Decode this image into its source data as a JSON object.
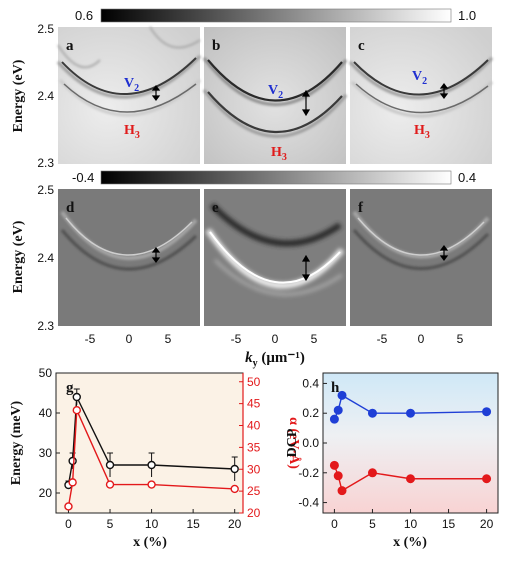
{
  "colorbars": [
    {
      "min_label": "0.6",
      "max_label": "1.0"
    },
    {
      "min_label": "-0.4",
      "max_label": "0.4"
    }
  ],
  "top_panels": {
    "ylabel": "Energy (eV)",
    "yticks": [
      "2.5",
      "2.4",
      "2.3"
    ],
    "panels": [
      {
        "letter": "a",
        "upper": "V",
        "upper_sub": "2",
        "lower": "H",
        "lower_sub": "3"
      },
      {
        "letter": "b",
        "upper": "V",
        "upper_sub": "2",
        "lower": "H",
        "lower_sub": "3"
      },
      {
        "letter": "c",
        "upper": "V",
        "upper_sub": "2",
        "lower": "H",
        "lower_sub": "3"
      }
    ]
  },
  "middle_panels": {
    "ylabel": "Energy (eV)",
    "yticks": [
      "2.5",
      "2.4",
      "2.3"
    ],
    "panels": [
      {
        "letter": "d"
      },
      {
        "letter": "e"
      },
      {
        "letter": "f"
      }
    ],
    "xticks": [
      "-5",
      "0",
      "5"
    ],
    "xlabel_main": "k",
    "xlabel_sub": "y",
    "xlabel_unit": " (μm⁻¹)"
  },
  "colors": {
    "panel_g_bg": "#fbf2e6",
    "panel_h_top": "#cfe8f7",
    "panel_h_bottom": "#f9d6d6",
    "black_series": "#111111",
    "red_series": "#e3191b",
    "blue_series": "#1f3fd6",
    "label_blue": "#1f2fd0",
    "label_red": "#e01b1b"
  },
  "chart_data": [
    {
      "type": "line",
      "panel": "g",
      "xlabel": "x (%)",
      "ylabel": "Energy (meV)",
      "y2label": "α (eV·Å)",
      "xlim": [
        -1.5,
        21
      ],
      "ylim": [
        15,
        50
      ],
      "y2lim": [
        20,
        52
      ],
      "xticks": [
        0,
        5,
        10,
        15,
        20
      ],
      "yticks": [
        20,
        30,
        40,
        50
      ],
      "y2ticks": [
        20,
        25,
        30,
        35,
        40,
        45,
        50
      ],
      "series": [
        {
          "axis": "left",
          "color": "black",
          "x": [
            0,
            0.5,
            1,
            5,
            10,
            20
          ],
          "values": [
            22,
            28,
            44,
            27,
            27,
            26
          ],
          "errors": [
            1,
            2,
            2,
            3,
            3,
            3
          ]
        },
        {
          "axis": "right",
          "color": "red",
          "x": [
            0,
            0.5,
            1,
            5,
            10,
            20
          ],
          "values": [
            21.5,
            27,
            43.5,
            26.5,
            26.5,
            25.5
          ]
        }
      ]
    },
    {
      "type": "line",
      "panel": "h",
      "xlabel": "x (%)",
      "ylabel": "DCP",
      "xlim": [
        -1.5,
        21.5
      ],
      "ylim": [
        -0.47,
        0.47
      ],
      "xticks": [
        0,
        5,
        10,
        15,
        20
      ],
      "yticks": [
        0.4,
        0.2,
        0.0,
        -0.2,
        -0.4
      ],
      "series": [
        {
          "color": "blue",
          "x": [
            0,
            0.5,
            1,
            5,
            10,
            20
          ],
          "values": [
            0.16,
            0.22,
            0.32,
            0.2,
            0.2,
            0.21
          ]
        },
        {
          "color": "red",
          "x": [
            0,
            0.5,
            1,
            5,
            10,
            20
          ],
          "values": [
            -0.15,
            -0.22,
            -0.32,
            -0.2,
            -0.24,
            -0.24
          ]
        }
      ]
    }
  ]
}
